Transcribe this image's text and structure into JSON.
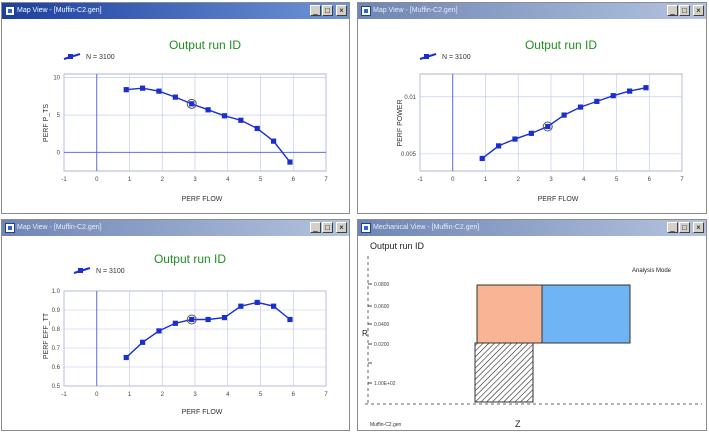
{
  "windows": [
    {
      "title": "Map View - [Muffin-C2.gen]",
      "active": true,
      "controls": {
        "minimize": "_",
        "maximize": "□",
        "close": "×"
      },
      "plot": {
        "title": "Output run ID",
        "legend": "N = 3100",
        "xlabel": "PERF FLOW",
        "ylabel": "PERF P_TS"
      }
    },
    {
      "title": "Map View - [Muffin-C2.gen]",
      "active": false,
      "controls": {
        "minimize": "_",
        "maximize": "□",
        "close": "×"
      },
      "plot": {
        "title": "Output run ID",
        "legend": "N = 3100",
        "xlabel": "PERF FLOW",
        "ylabel": "PERF POWER"
      }
    },
    {
      "title": "Map View - [Muffin-C2.gen]",
      "active": false,
      "controls": {
        "minimize": "_",
        "maximize": "□",
        "close": "×"
      },
      "plot": {
        "title": "Output run ID",
        "legend": "N = 3100",
        "xlabel": "PERF FLOW",
        "ylabel": "PERF EFF_TT"
      }
    },
    {
      "title": "Mechanical View - [Muffin-C2.gen]",
      "active": false,
      "controls": {
        "minimize": "_",
        "maximize": "□",
        "close": "×"
      },
      "view": {
        "title": "Output run ID",
        "mode_label": "Analysis Mode",
        "r_axis_label": "R",
        "z_axis_label": "Z",
        "r_ticks": [
          "0.0800",
          "0.0600",
          "0.0400",
          "0.0200",
          "1.00E+02"
        ],
        "footer_label": "Muffin-C2.gen",
        "colors": {
          "left_block": "#f9b496",
          "right_block": "#6fb4f5"
        }
      }
    }
  ],
  "chart_data": [
    {
      "type": "line",
      "title": "Output run ID",
      "xlabel": "PERF FLOW",
      "ylabel": "PERF P_TS",
      "xlim": [
        -1,
        7
      ],
      "ylim": [
        -2.5,
        10.5
      ],
      "xticks": [
        -1,
        0,
        1,
        2,
        3,
        4,
        5,
        6,
        7
      ],
      "yticks": [
        0,
        5,
        10
      ],
      "series": [
        {
          "name": "N = 3100",
          "x": [
            0.9,
            1.4,
            1.9,
            2.4,
            2.9,
            3.4,
            3.9,
            4.4,
            4.9,
            5.4,
            5.9
          ],
          "y": [
            8.4,
            8.6,
            8.2,
            7.4,
            6.5,
            5.7,
            4.9,
            4.3,
            3.2,
            1.5,
            -1.3
          ]
        }
      ],
      "highlight_x": 2.9,
      "grid": true,
      "legend_position": "top-left"
    },
    {
      "type": "line",
      "title": "Output run ID",
      "xlabel": "PERF FLOW",
      "ylabel": "PERF POWER",
      "xlim": [
        -1,
        7
      ],
      "ylim": [
        0.0035,
        0.012
      ],
      "xticks": [
        -1,
        0,
        1,
        2,
        3,
        4,
        5,
        6,
        7
      ],
      "yticks": [
        0.005,
        0.01
      ],
      "ytick_labels": [
        "0.005",
        "0.01"
      ],
      "series": [
        {
          "name": "N = 3100",
          "x": [
            0.9,
            1.4,
            1.9,
            2.4,
            2.9,
            3.4,
            3.9,
            4.4,
            4.9,
            5.4,
            5.9
          ],
          "y": [
            0.0046,
            0.0057,
            0.0063,
            0.0068,
            0.0074,
            0.0084,
            0.0091,
            0.0096,
            0.0101,
            0.0105,
            0.0108
          ]
        }
      ],
      "highlight_x": 2.9,
      "grid": true,
      "legend_position": "top-left"
    },
    {
      "type": "line",
      "title": "Output run ID",
      "xlabel": "PERF FLOW",
      "ylabel": "PERF EFF_TT",
      "xlim": [
        -1,
        7
      ],
      "ylim": [
        0.5,
        1.0
      ],
      "xticks": [
        -1,
        0,
        1,
        2,
        3,
        4,
        5,
        6,
        7
      ],
      "yticks": [
        0.5,
        0.6,
        0.7,
        0.8,
        0.9,
        1.0
      ],
      "ytick_labels": [
        "0.5",
        "0.6",
        "0.7",
        "0.8",
        "0.9",
        "1.0"
      ],
      "series": [
        {
          "name": "N = 3100",
          "x": [
            0.9,
            1.4,
            1.9,
            2.4,
            2.9,
            3.4,
            3.9,
            4.4,
            4.9,
            5.4,
            5.9
          ],
          "y": [
            0.65,
            0.73,
            0.79,
            0.83,
            0.85,
            0.85,
            0.86,
            0.92,
            0.94,
            0.92,
            0.85
          ]
        }
      ],
      "highlight_x": 2.9,
      "grid": true,
      "legend_position": "top-left"
    }
  ]
}
